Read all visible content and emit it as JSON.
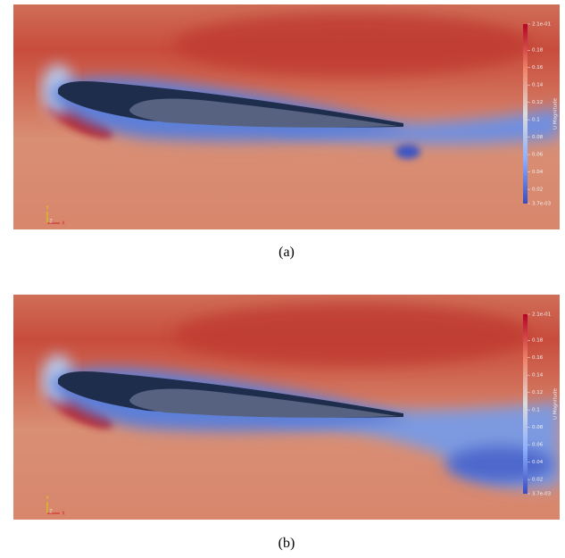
{
  "panels": [
    {
      "caption": "(a)",
      "colorbar": {
        "title": "U Magnitude",
        "lim": [
          0.0037,
          0.21
        ],
        "ticks": [
          {
            "value": 0.21,
            "label": "2.1e-01"
          },
          0.18,
          0.16,
          0.14,
          0.12,
          0.1,
          0.08,
          0.06,
          0.04,
          0.02,
          {
            "value": 0.0037,
            "label": "3.7e-03"
          }
        ]
      },
      "axes": [
        "Y",
        "Z",
        "X"
      ]
    },
    {
      "caption": "(b)",
      "colorbar": {
        "title": "U Magnitude",
        "lim": [
          0.0037,
          0.21
        ],
        "ticks": [
          {
            "value": 0.21,
            "label": "2.1e-01"
          },
          0.18,
          0.16,
          0.14,
          0.12,
          0.1,
          0.08,
          0.06,
          0.04,
          0.02,
          {
            "value": 0.0037,
            "label": "3.7e-03"
          }
        ]
      },
      "axes": [
        "Y",
        "Z",
        "X"
      ]
    }
  ]
}
